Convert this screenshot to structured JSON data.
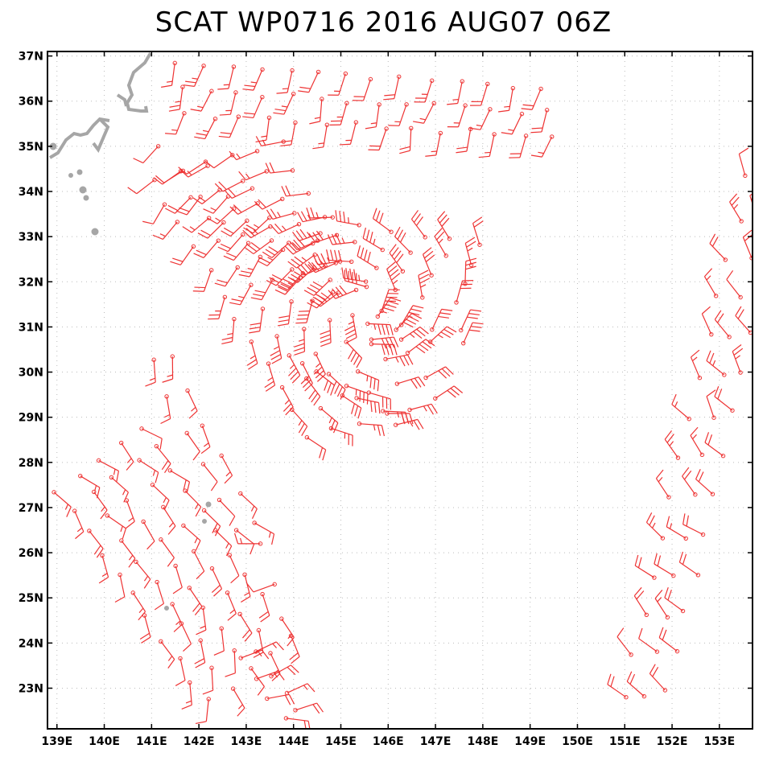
{
  "title": "SCAT WP0716 2016 AUG07 06Z",
  "colors": {
    "wind": "#ee3333",
    "land": "#a6a6a6",
    "grid": "#bbbbbb",
    "frame": "#000000"
  },
  "axes": {
    "lon_range": [
      138.8,
      153.7
    ],
    "lat_range": [
      22.1,
      37.1
    ],
    "lon_ticks": [
      "139E",
      "140E",
      "141E",
      "142E",
      "143E",
      "144E",
      "145E",
      "146E",
      "147E",
      "148E",
      "149E",
      "150E",
      "151E",
      "152E",
      "153E"
    ],
    "lat_ticks": [
      "23N",
      "24N",
      "25N",
      "26N",
      "27N",
      "28N",
      "29N",
      "30N",
      "31N",
      "32N",
      "33N",
      "34N",
      "35N",
      "36N",
      "37N"
    ]
  }
}
